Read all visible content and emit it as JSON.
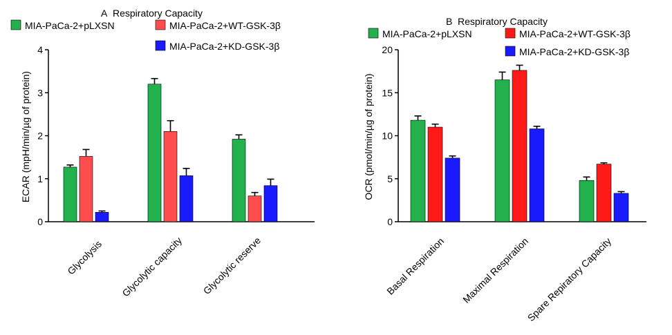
{
  "chart_data": [
    {
      "panel": "A",
      "type": "bar",
      "title": "Respiratory Capacity",
      "xlabel": "",
      "ylabel": "ECAR (mpH/min/µg of protein)",
      "ylim": [
        0,
        4
      ],
      "yticks": [
        0,
        1,
        2,
        3,
        4
      ],
      "categories": [
        "Glycolysis",
        "Glycolytic capacity",
        "Glycolytic reserve"
      ],
      "series": [
        {
          "name": "MIA-PaCa-2+pLXSN",
          "color": "#22b14c",
          "values": [
            1.27,
            3.2,
            1.92
          ],
          "errors": [
            0.05,
            0.13,
            0.1
          ]
        },
        {
          "name": "MIA-PaCa-2+WT-GSK-3β",
          "color": "#ff4d4d",
          "values": [
            1.52,
            2.1,
            0.6
          ],
          "errors": [
            0.16,
            0.25,
            0.08
          ]
        },
        {
          "name": "MIA-PaCa-2+KD-GSK-3β",
          "color": "#1a1aff",
          "values": [
            0.22,
            1.07,
            0.84
          ],
          "errors": [
            0.03,
            0.17,
            0.15
          ]
        }
      ],
      "legend_position": "top"
    },
    {
      "panel": "B",
      "type": "bar",
      "title": "Respiratory Capacity",
      "xlabel": "",
      "ylabel": "OCR (pmol/min/µg of protein)",
      "ylim": [
        0,
        20
      ],
      "yticks": [
        0,
        5,
        10,
        15,
        20
      ],
      "categories": [
        "Basal Respiration",
        "Maximal Respiration",
        "Spare Repiratory Capacity"
      ],
      "series": [
        {
          "name": "MIA-PaCa-2+pLXSN",
          "color": "#22b14c",
          "values": [
            11.8,
            16.5,
            4.8
          ],
          "errors": [
            0.5,
            0.9,
            0.4
          ]
        },
        {
          "name": "MIA-PaCa-2+WT-GSK-3β",
          "color": "#ff1a1a",
          "values": [
            11.0,
            17.6,
            6.7
          ],
          "errors": [
            0.35,
            0.6,
            0.15
          ]
        },
        {
          "name": "MIA-PaCa-2+KD-GSK-3β",
          "color": "#1a1aff",
          "values": [
            7.4,
            10.8,
            3.3
          ],
          "errors": [
            0.25,
            0.3,
            0.2
          ]
        }
      ],
      "legend_position": "top"
    }
  ]
}
